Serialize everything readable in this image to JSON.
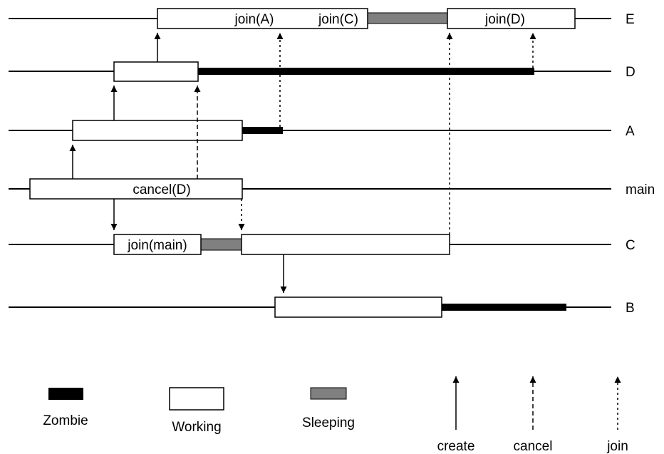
{
  "threads": {
    "E": "E",
    "D": "D",
    "A": "A",
    "main": "main",
    "C": "C",
    "B": "B"
  },
  "box_labels": {
    "join_a": "join(A)",
    "join_c": "join(C)",
    "join_d": "join(D)",
    "cancel_d": "cancel(D)",
    "join_main": "join(main)"
  },
  "legend": {
    "zombie": "Zombie",
    "working": "Working",
    "sleeping": "Sleeping",
    "create": "create",
    "cancel": "cancel",
    "join": "join"
  },
  "colors": {
    "zombie": "#000000",
    "working": "#ffffff",
    "sleeping": "#808080",
    "line": "#000000"
  }
}
